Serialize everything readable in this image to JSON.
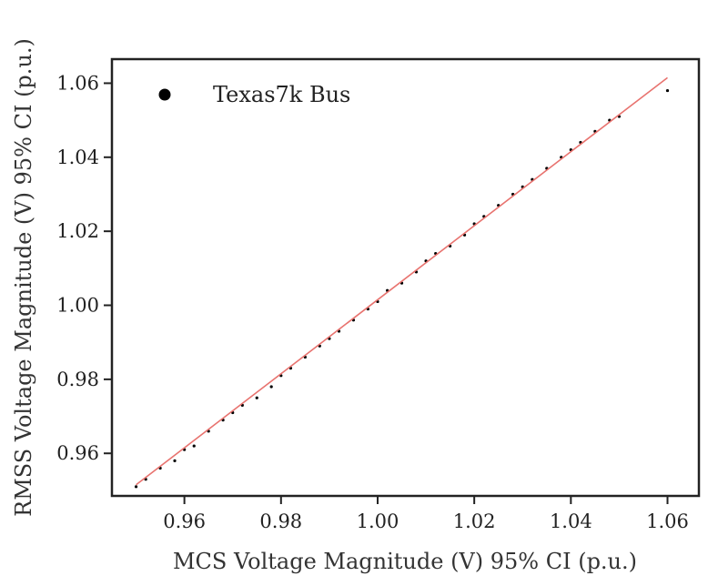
{
  "chart_data": {
    "type": "scatter",
    "title": "",
    "xlabel": "MCS Voltage Magnitude (V) 95% CI (p.u.)",
    "ylabel": "RMSS Voltage Magnitude (V) 95% CI (p.u.)",
    "xlim": [
      0.945,
      1.0665
    ],
    "ylim": [
      0.9485,
      1.0665
    ],
    "x_ticks": [
      "0.96",
      "0.98",
      "1.00",
      "1.02",
      "1.04",
      "1.06"
    ],
    "y_ticks": [
      "0.96",
      "0.98",
      "1.00",
      "1.02",
      "1.04",
      "1.06"
    ],
    "grid": false,
    "legend": {
      "placement": "top-left",
      "entries": [
        "Texas7k Bus"
      ]
    },
    "series": [
      {
        "name": "Texas7k Bus",
        "marker_color": "#000000",
        "points": [
          [
            0.95,
            0.951
          ],
          [
            0.952,
            0.953
          ],
          [
            0.955,
            0.956
          ],
          [
            0.958,
            0.958
          ],
          [
            0.96,
            0.961
          ],
          [
            0.962,
            0.962
          ],
          [
            0.965,
            0.966
          ],
          [
            0.968,
            0.969
          ],
          [
            0.97,
            0.971
          ],
          [
            0.972,
            0.973
          ],
          [
            0.975,
            0.975
          ],
          [
            0.978,
            0.978
          ],
          [
            0.98,
            0.981
          ],
          [
            0.982,
            0.983
          ],
          [
            0.985,
            0.986
          ],
          [
            0.988,
            0.989
          ],
          [
            0.99,
            0.991
          ],
          [
            0.992,
            0.993
          ],
          [
            0.995,
            0.996
          ],
          [
            0.998,
            0.999
          ],
          [
            1.0,
            1.001
          ],
          [
            1.002,
            1.004
          ],
          [
            1.005,
            1.006
          ],
          [
            1.008,
            1.009
          ],
          [
            1.01,
            1.012
          ],
          [
            1.012,
            1.014
          ],
          [
            1.015,
            1.016
          ],
          [
            1.018,
            1.019
          ],
          [
            1.02,
            1.022
          ],
          [
            1.022,
            1.024
          ],
          [
            1.025,
            1.027
          ],
          [
            1.028,
            1.03
          ],
          [
            1.03,
            1.032
          ],
          [
            1.032,
            1.034
          ],
          [
            1.035,
            1.037
          ],
          [
            1.038,
            1.04
          ],
          [
            1.04,
            1.042
          ],
          [
            1.042,
            1.044
          ],
          [
            1.045,
            1.047
          ],
          [
            1.048,
            1.05
          ],
          [
            1.05,
            1.051
          ],
          [
            1.06,
            1.058
          ]
        ]
      },
      {
        "name": "",
        "type": "line",
        "line_color": "#e8736f",
        "x": [
          0.95,
          1.06
        ],
        "y": [
          0.9515,
          1.0615
        ]
      }
    ]
  }
}
